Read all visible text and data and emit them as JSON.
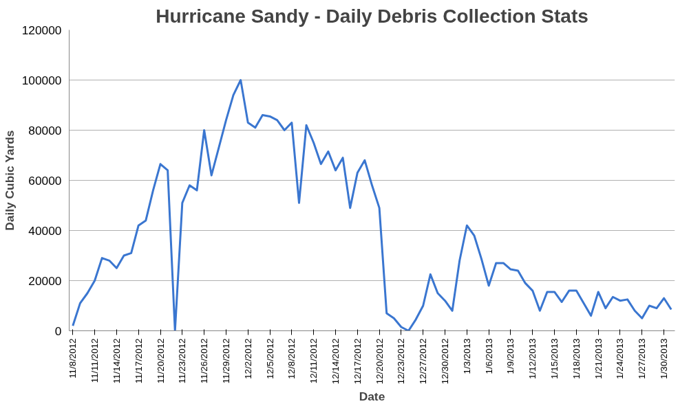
{
  "chart_data": {
    "type": "line",
    "title": "Hurricane Sandy - Daily Debris Collection Stats",
    "xlabel": "Date",
    "ylabel": "Daily Cubic Yards",
    "categories": [
      "11/8/2012",
      null,
      null,
      "11/11/2012",
      null,
      null,
      "11/14/2012",
      null,
      null,
      "11/17/2012",
      null,
      null,
      "11/20/2012",
      null,
      null,
      "11/23/2012",
      null,
      null,
      "11/26/2012",
      null,
      null,
      "11/29/2012",
      null,
      null,
      "12/2/2012",
      null,
      null,
      "12/5/2012",
      null,
      null,
      "12/8/2012",
      null,
      null,
      "12/11/2012",
      null,
      null,
      "12/14/2012",
      null,
      null,
      "12/17/2012",
      null,
      null,
      "12/20/2012",
      null,
      null,
      "12/23/2012",
      null,
      null,
      "12/27/2012",
      null,
      null,
      "12/30/2012",
      null,
      null,
      "1/3/2013",
      null,
      null,
      "1/6/2013",
      null,
      null,
      "1/9/2013",
      null,
      null,
      "1/12/2013",
      null,
      null,
      "1/15/2013",
      null,
      null,
      "1/18/2013",
      null,
      null,
      "1/21/2013",
      null,
      null,
      "1/24/2013",
      null,
      null,
      "1/27/2013",
      null,
      null,
      "1/30/2013",
      null
    ],
    "series": [
      {
        "color": "#3a76d0",
        "values": [
          2000,
          11000,
          15000,
          20000,
          29000,
          28000,
          25000,
          30000,
          31000,
          42000,
          44000,
          56000,
          66500,
          64000,
          0,
          51000,
          58000,
          56000,
          80000,
          62000,
          73000,
          84000,
          94000,
          100000,
          83000,
          81000,
          86000,
          85500,
          84000,
          80000,
          83000,
          51000,
          82000,
          75000,
          66500,
          71500,
          64000,
          69000,
          49000,
          63000,
          68000,
          58000,
          49000,
          7000,
          5000,
          1500,
          0,
          4500,
          10000,
          22500,
          15000,
          12000,
          8000,
          28000,
          42000,
          38000,
          28600,
          18000,
          27000,
          27000,
          24500,
          24000,
          19000,
          16000,
          8000,
          15500,
          15500,
          11500,
          16000,
          16000,
          11000,
          6000,
          15500,
          9000,
          13500,
          12000,
          12500,
          8000,
          5000,
          10000,
          9000,
          13000,
          8500
        ]
      }
    ],
    "ylim": [
      0,
      120000
    ],
    "yticks": [
      0,
      20000,
      40000,
      60000,
      80000,
      100000,
      120000
    ],
    "grid": "y",
    "marker": "none",
    "line_style": "solid"
  }
}
